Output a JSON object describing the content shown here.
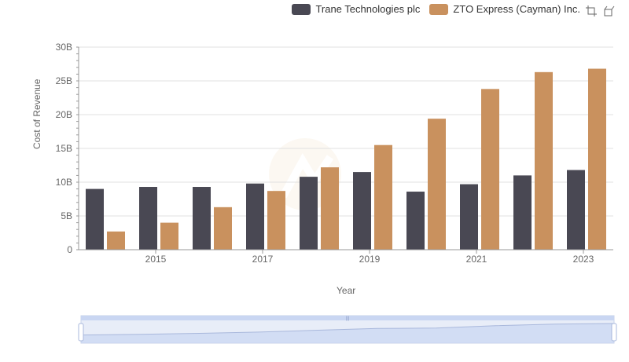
{
  "legend": [
    {
      "name": "Trane Technologies plc",
      "color": "#494853"
    },
    {
      "name": "ZTO Express (Cayman) Inc.",
      "color": "#c9915e"
    }
  ],
  "toolbox": {
    "zoom_icon": "zoom-icon",
    "restore_icon": "restore-icon"
  },
  "chart_data": {
    "type": "bar",
    "xlabel": "Year",
    "ylabel": "Cost of Revenue",
    "categories": [
      "2014",
      "2015",
      "2016",
      "2017",
      "2018",
      "2019",
      "2020",
      "2021",
      "2022",
      "2023"
    ],
    "x_tick_labels": [
      "2015",
      "2017",
      "2019",
      "2021",
      "2023"
    ],
    "y_tick_labels": [
      "0",
      "5B",
      "10B",
      "15B",
      "20B",
      "25B",
      "30B"
    ],
    "ylim": [
      0,
      30
    ],
    "y_unit": "B",
    "grid": true,
    "legend_position": "top-right",
    "series": [
      {
        "name": "Trane Technologies plc",
        "color": "#494853",
        "values": [
          9.0,
          9.3,
          9.3,
          9.8,
          10.8,
          11.5,
          8.6,
          9.7,
          11.0,
          11.8
        ]
      },
      {
        "name": "ZTO Express (Cayman) Inc.",
        "color": "#c9915e",
        "values": [
          2.7,
          4.0,
          6.3,
          8.7,
          12.2,
          15.5,
          19.4,
          23.8,
          26.3,
          26.8
        ]
      }
    ]
  }
}
